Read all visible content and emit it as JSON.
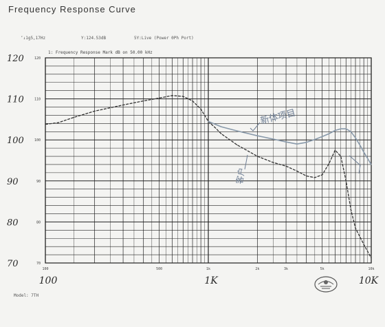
{
  "page": {
    "title": "Frequency Response Curve",
    "meta_left": "‘↓1g5,17Hz",
    "meta_mid": "Y:124.53dB",
    "meta_right": "5Y:Live (Power  0Ph Port)",
    "chart_header": "1: Frequency Response  Mark dB on 50.00 kHz",
    "footer_left": "Model: 7TH"
  },
  "chart_data": {
    "type": "line",
    "title": "Frequency Response Curve",
    "xscale": "log",
    "xlim": [
      100,
      10000
    ],
    "ylim": [
      70,
      120
    ],
    "grid": true,
    "y_ticks_handwritten": [
      "120",
      "110",
      "100",
      "90",
      "80",
      "70"
    ],
    "y_ticks_printed": [
      "120",
      "110",
      "100",
      "90",
      "80",
      "70"
    ],
    "x_ticks_printed": [
      "100",
      "500",
      "1k",
      "2k",
      "3k",
      "5k",
      "10k"
    ],
    "x_ticks_handwritten": [
      "100",
      "1K",
      "10K"
    ],
    "annotations": [
      "客户",
      "新体项目"
    ],
    "series": [
      {
        "color": "#333333",
        "style": "dashed",
        "x": [
          100,
          120,
          150,
          200,
          300,
          400,
          500,
          600,
          700,
          800,
          900,
          1000,
          1100,
          1200,
          1500,
          2000,
          2500,
          3000,
          3500,
          4000,
          4500,
          5000,
          5500,
          6000,
          6500,
          7000,
          7500,
          8000,
          9000,
          10000
        ],
        "y": [
          103.8,
          104.2,
          105.5,
          107.0,
          108.5,
          109.5,
          110.2,
          110.8,
          110.6,
          109.5,
          107.5,
          104.5,
          103.0,
          101.5,
          98.8,
          96.0,
          94.5,
          93.6,
          92.4,
          91.2,
          90.8,
          91.5,
          94.2,
          97.5,
          96.0,
          90.0,
          83.0,
          78.5,
          74.5,
          71.2
        ]
      },
      {
        "color": "#8899aa",
        "style": "solid",
        "x": [
          1000,
          1200,
          1500,
          2000,
          2500,
          3000,
          3500,
          4000,
          4500,
          5000,
          5500,
          6000,
          6500,
          7000,
          7500,
          8000,
          8500,
          9000,
          10000
        ],
        "y": [
          104.5,
          103.2,
          102.2,
          101.0,
          100.2,
          99.5,
          99.0,
          99.4,
          100.1,
          100.8,
          101.5,
          102.3,
          102.7,
          102.7,
          102.0,
          100.5,
          98.8,
          97.0,
          94.0
        ]
      }
    ]
  }
}
